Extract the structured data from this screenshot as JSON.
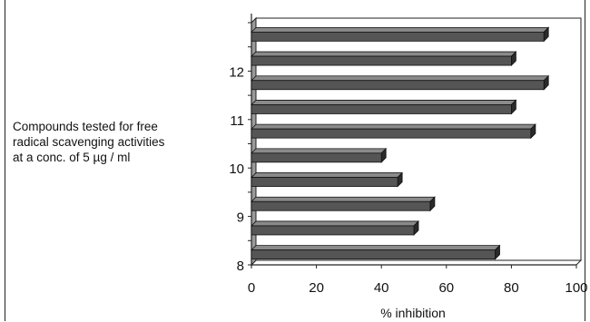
{
  "chart_data": {
    "type": "bar",
    "orientation": "horizontal",
    "style": "3d",
    "ylabel": "Compounds tested for free\nradical scavenging activities\nat a conc. of 5 µg / ml",
    "xlabel": "% inhibition",
    "xlim": [
      0,
      100
    ],
    "x_ticks": [
      "0",
      "20",
      "40",
      "60",
      "80",
      "100"
    ],
    "y_tick_labels": [
      "8",
      "9",
      "10",
      "11",
      "12"
    ],
    "bars_bottom_to_top": [
      75,
      50,
      55,
      45,
      40,
      86,
      80,
      90,
      80,
      90
    ],
    "bar_color": "#555555",
    "grid": false,
    "legend": "none"
  }
}
